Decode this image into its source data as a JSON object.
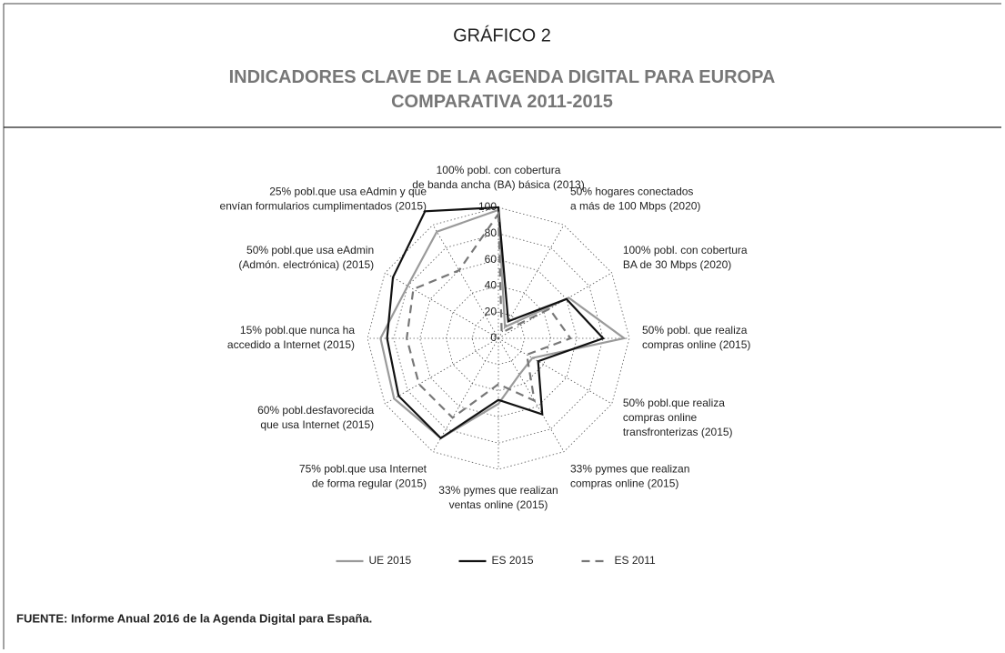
{
  "chart_data": {
    "type": "radar",
    "title": "GRÁFICO 2",
    "subtitle": "INDICADORES CLAVE DE LA AGENDA DIGITAL PARA EUROPA\nCOMPARATIVA 2011-2015",
    "source": "FUENTE: Informe Anual 2016 de la Agenda Digital para España.",
    "categories": [
      "100% pobl. con cobertura\nde banda ancha (BA) básica (2013)",
      "50% hogares conectados\na más de 100 Mbps (2020)",
      "100% pobl. con cobertura\nBA de 30 Mbps (2020)",
      "50% pobl. que realiza\ncompras online (2015)",
      "50% pobl.que realiza\ncompras online\ntransfronterizas (2015)",
      "33% pymes que realizan\ncompras online (2015)",
      "33% pymes que realizan\nventas online (2015)",
      "75% pobl.que usa Internet\nde forma regular (2015)",
      "60% pobl.desfavorecida\nque usa Internet (2015)",
      "15% pobl.que nunca ha\naccedido a Internet (2015)",
      "50% pobl.que usa eAdmin\n(Admón. electrónica) (2015)",
      "25% pobl.que usa eAdmin y que\nenvían formularios cumplimentados (2015)"
    ],
    "series": [
      {
        "name": "UE 2015",
        "color": "#9a9a9a",
        "dash": "solid",
        "values": [
          98,
          10,
          62,
          96,
          30,
          32,
          50,
          88,
          92,
          90,
          80,
          94
        ]
      },
      {
        "name": "ES 2015",
        "color": "#111111",
        "dash": "solid",
        "values": [
          100,
          15,
          60,
          80,
          35,
          67,
          47,
          88,
          88,
          85,
          93,
          112
        ]
      },
      {
        "name": "ES 2011",
        "color": "#777777",
        "dash": "dashed",
        "values": [
          95,
          5,
          45,
          55,
          25,
          55,
          35,
          70,
          70,
          70,
          75,
          60
        ]
      }
    ],
    "ylim": [
      0,
      100
    ],
    "yticks": [
      0,
      20,
      40,
      60,
      80,
      100
    ],
    "grid": true,
    "legend": "bottom"
  }
}
